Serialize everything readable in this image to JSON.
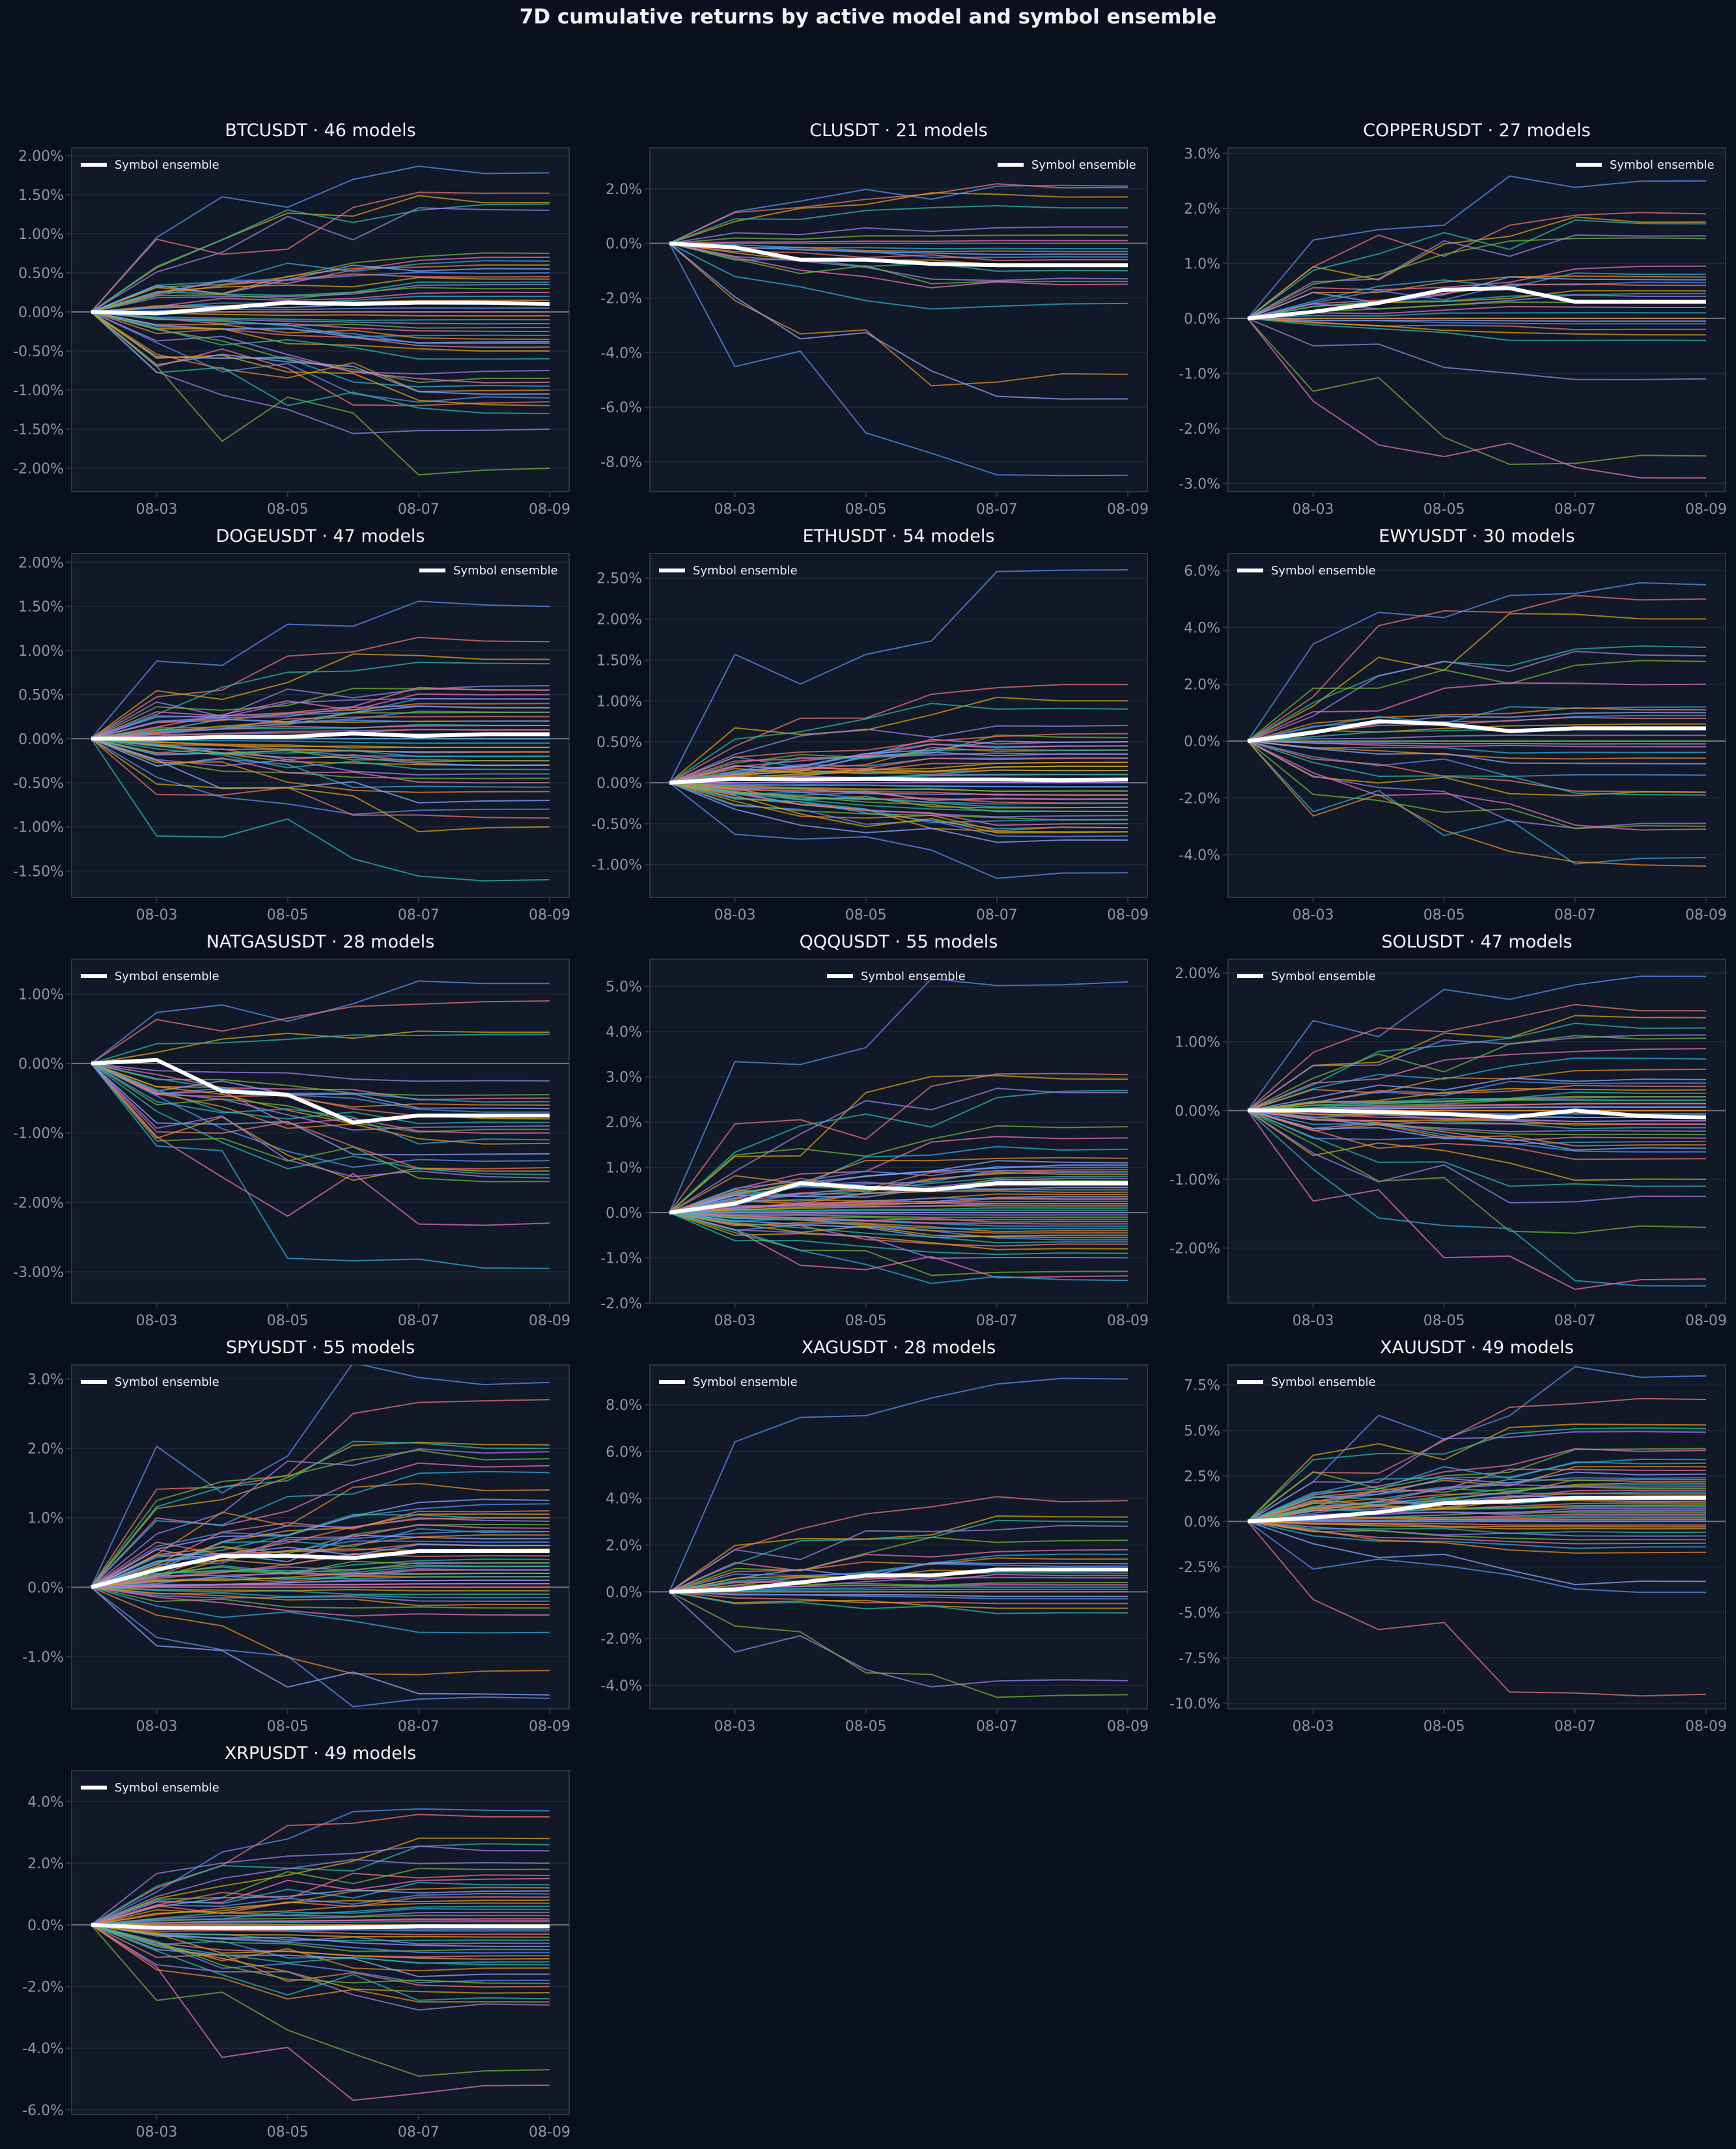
{
  "title": "7D cumulative returns by active model and symbol ensemble",
  "colors": {
    "background": "#0a0f1d",
    "axes_face": "#111827",
    "axes_edge": "#2b3444",
    "grid": "#1f2a3a",
    "zero_line": "#6b7280",
    "ensemble": "#ffffff",
    "model_palette": [
      "#5b8def",
      "#e57373",
      "#d4a017",
      "#2bb5a6",
      "#9b7fe6",
      "#6fb23b",
      "#e56fb0",
      "#2fa9d4",
      "#e08a2b",
      "#8aa4ff"
    ]
  },
  "chart_data": [
    {
      "type": "line",
      "title": "BTCUSDT · 46 models",
      "x": [
        "08-02",
        "08-03",
        "08-04",
        "08-05",
        "08-06",
        "08-07",
        "08-08",
        "08-09"
      ],
      "xticks": [
        "08-03",
        "08-05",
        "08-07",
        "08-09"
      ],
      "ylim": [
        -2.3,
        2.1
      ],
      "yticks": [
        "2.00%",
        "1.50%",
        "1.00%",
        "0.50%",
        "0.00%",
        "-0.50%",
        "-1.00%",
        "-1.50%",
        "-2.00%"
      ],
      "ytick_values": [
        2.0,
        1.5,
        1.0,
        0.5,
        0.0,
        -0.5,
        -1.0,
        -1.5,
        -2.0
      ],
      "legend": "Symbol ensemble",
      "legend_position": "upper-left",
      "grid": true,
      "ensemble": [
        0,
        -0.02,
        0.05,
        0.12,
        0.1,
        0.12,
        0.12,
        0.1
      ],
      "model_final_values": [
        1.78,
        1.52,
        1.4,
        1.38,
        1.3,
        0.75,
        0.7,
        0.65,
        0.6,
        0.55,
        0.5,
        0.45,
        0.42,
        0.38,
        0.35,
        0.3,
        0.25,
        0.2,
        0.15,
        0.1,
        0.05,
        0.0,
        -0.05,
        -0.1,
        -0.15,
        -0.2,
        -0.25,
        -0.3,
        -0.35,
        -0.38,
        -0.4,
        -0.45,
        -0.5,
        -0.6,
        -0.75,
        -0.85,
        -0.9,
        -0.95,
        -1.0,
        -1.05,
        -1.1,
        -1.15,
        -1.2,
        -1.3,
        -1.5,
        -2.0
      ]
    },
    {
      "type": "line",
      "title": "CLUSDT · 21 models",
      "x": [
        "08-02",
        "08-03",
        "08-04",
        "08-05",
        "08-06",
        "08-07",
        "08-08",
        "08-09"
      ],
      "xticks": [
        "08-03",
        "08-05",
        "08-07",
        "08-09"
      ],
      "ylim": [
        -9.1,
        3.5
      ],
      "yticks": [
        "2.0%",
        "0.0%",
        "-2.0%",
        "-4.0%",
        "-6.0%",
        "-8.0%"
      ],
      "ytick_values": [
        2.0,
        0.0,
        -2.0,
        -4.0,
        -6.0,
        -8.0
      ],
      "legend": "Symbol ensemble",
      "legend_position": "upper-right",
      "grid": true,
      "ensemble": [
        0,
        -0.15,
        -0.6,
        -0.6,
        -0.75,
        -0.8,
        -0.8,
        -0.8
      ],
      "model_final_values": [
        2.1,
        2.05,
        1.7,
        1.3,
        0.6,
        0.3,
        0.1,
        -0.2,
        -0.3,
        -0.4,
        -0.5,
        -0.6,
        -0.8,
        -1.0,
        -1.3,
        -1.4,
        -1.5,
        -2.2,
        -4.8,
        -5.7,
        -8.5
      ]
    },
    {
      "type": "line",
      "title": "COPPERUSDT · 27 models",
      "x": [
        "08-02",
        "08-03",
        "08-04",
        "08-05",
        "08-06",
        "08-07",
        "08-08",
        "08-09"
      ],
      "xticks": [
        "08-03",
        "08-05",
        "08-07",
        "08-09"
      ],
      "ylim": [
        -3.15,
        3.1
      ],
      "yticks": [
        "3.0%",
        "2.0%",
        "1.0%",
        "0.0%",
        "-1.0%",
        "-2.0%",
        "-3.0%"
      ],
      "ytick_values": [
        3.0,
        2.0,
        1.0,
        0.0,
        -1.0,
        -2.0,
        -3.0
      ],
      "legend": "Symbol ensemble",
      "legend_position": "upper-right",
      "grid": true,
      "ensemble": [
        0,
        0.12,
        0.28,
        0.52,
        0.55,
        0.3,
        0.3,
        0.3
      ],
      "model_final_values": [
        2.5,
        1.9,
        1.75,
        1.72,
        1.5,
        1.45,
        0.95,
        0.8,
        0.75,
        0.7,
        0.65,
        0.6,
        0.5,
        0.45,
        0.4,
        0.3,
        0.2,
        0.1,
        0.0,
        -0.05,
        -0.1,
        -0.2,
        -0.3,
        -0.4,
        -1.1,
        -2.5,
        -2.9
      ]
    },
    {
      "type": "line",
      "title": "DOGEUSDT · 47 models",
      "x": [
        "08-02",
        "08-03",
        "08-04",
        "08-05",
        "08-06",
        "08-07",
        "08-08",
        "08-09"
      ],
      "xticks": [
        "08-03",
        "08-05",
        "08-07",
        "08-09"
      ],
      "ylim": [
        -1.8,
        2.1
      ],
      "yticks": [
        "2.00%",
        "1.50%",
        "1.00%",
        "0.50%",
        "0.00%",
        "-0.50%",
        "-1.00%",
        "-1.50%"
      ],
      "ytick_values": [
        2.0,
        1.5,
        1.0,
        0.5,
        0.0,
        -0.5,
        -1.0,
        -1.5
      ],
      "legend": "Symbol ensemble",
      "legend_position": "upper-right",
      "grid": true,
      "ensemble": [
        0,
        0.0,
        0.02,
        0.02,
        0.06,
        0.03,
        0.05,
        0.05
      ],
      "model_final_values": [
        1.5,
        1.1,
        0.9,
        0.85,
        0.6,
        0.55,
        0.5,
        0.45,
        0.4,
        0.35,
        0.3,
        0.25,
        0.2,
        0.15,
        0.1,
        0.05,
        0.0,
        -0.05,
        -0.1,
        -0.15,
        -0.2,
        -0.25,
        -0.3,
        -0.35,
        -0.4,
        -0.45,
        -0.5,
        -0.55,
        -0.6,
        -0.7,
        -0.8,
        -0.9,
        -1.0,
        -1.6,
        0.45,
        0.3,
        0.15,
        0.0,
        -0.15,
        -0.3,
        0.2,
        0.1,
        -0.1,
        -0.2,
        0.35,
        -0.25,
        0.55
      ]
    },
    {
      "type": "line",
      "title": "ETHUSDT · 54 models",
      "x": [
        "08-02",
        "08-03",
        "08-04",
        "08-05",
        "08-06",
        "08-07",
        "08-08",
        "08-09"
      ],
      "xticks": [
        "08-03",
        "08-05",
        "08-07",
        "08-09"
      ],
      "ylim": [
        -1.4,
        2.8
      ],
      "yticks": [
        "2.50%",
        "2.00%",
        "1.50%",
        "1.00%",
        "0.50%",
        "0.00%",
        "-0.50%",
        "-1.00%"
      ],
      "ytick_values": [
        2.5,
        2.0,
        1.5,
        1.0,
        0.5,
        0.0,
        -0.5,
        -1.0
      ],
      "legend": "Symbol ensemble",
      "legend_position": "upper-left",
      "grid": true,
      "ensemble": [
        0,
        0.05,
        0.04,
        0.05,
        0.04,
        0.04,
        0.03,
        0.04
      ],
      "model_final_values": [
        2.6,
        1.2,
        1.0,
        0.9,
        0.7,
        0.55,
        0.5,
        0.45,
        0.4,
        0.35,
        0.3,
        0.25,
        0.2,
        0.15,
        0.1,
        0.05,
        0.0,
        -0.05,
        -0.1,
        -0.15,
        -0.2,
        -0.25,
        -0.3,
        -0.35,
        -0.4,
        -0.45,
        -0.5,
        -0.55,
        -0.6,
        -0.7,
        -1.1,
        0.3,
        0.2,
        0.1,
        0.0,
        -0.1,
        -0.2,
        -0.3,
        0.15,
        0.05,
        -0.05,
        -0.15,
        0.25,
        -0.25,
        0.35,
        -0.35,
        0.45,
        -0.45,
        -0.55,
        0.5,
        -0.65,
        0.6,
        -0.6,
        0.4
      ]
    },
    {
      "type": "line",
      "title": "EWYUSDT · 30 models",
      "x": [
        "08-02",
        "08-03",
        "08-04",
        "08-05",
        "08-06",
        "08-07",
        "08-08",
        "08-09"
      ],
      "xticks": [
        "08-03",
        "08-05",
        "08-07",
        "08-09"
      ],
      "ylim": [
        -5.5,
        6.6
      ],
      "yticks": [
        "6.0%",
        "4.0%",
        "2.0%",
        "0.0%",
        "-2.0%",
        "-4.0%"
      ],
      "ytick_values": [
        6.0,
        4.0,
        2.0,
        0.0,
        -2.0,
        -4.0
      ],
      "legend": "Symbol ensemble",
      "legend_position": "upper-left",
      "grid": true,
      "ensemble": [
        0,
        0.3,
        0.7,
        0.6,
        0.35,
        0.45,
        0.45,
        0.45
      ],
      "model_final_values": [
        5.5,
        5.0,
        4.3,
        3.3,
        3.0,
        2.8,
        2.0,
        1.2,
        1.1,
        1.0,
        0.9,
        0.8,
        0.6,
        0.4,
        0.2,
        0.0,
        -0.2,
        -0.4,
        -0.6,
        -0.8,
        -1.2,
        -1.8,
        -1.8,
        -1.9,
        -2.9,
        -3.0,
        -3.1,
        -4.1,
        -4.4,
        -0.1
      ]
    },
    {
      "type": "line",
      "title": "NATGASUSDT · 28 models",
      "x": [
        "08-02",
        "08-03",
        "08-04",
        "08-05",
        "08-06",
        "08-07",
        "08-08",
        "08-09"
      ],
      "xticks": [
        "08-03",
        "08-05",
        "08-07",
        "08-09"
      ],
      "ylim": [
        -3.45,
        1.5
      ],
      "yticks": [
        "1.00%",
        "0.00%",
        "-1.00%",
        "-2.00%",
        "-3.00%"
      ],
      "ytick_values": [
        1.0,
        0.0,
        -1.0,
        -2.0,
        -3.0
      ],
      "legend": "Symbol ensemble",
      "legend_position": "upper-left",
      "grid": true,
      "ensemble": [
        0,
        0.05,
        -0.4,
        -0.45,
        -0.85,
        -0.75,
        -0.75,
        -0.75
      ],
      "model_final_values": [
        1.15,
        0.9,
        0.45,
        0.42,
        -0.25,
        -0.45,
        -0.5,
        -0.55,
        -0.6,
        -0.65,
        -0.7,
        -0.75,
        -0.8,
        -0.85,
        -0.9,
        -0.95,
        -1.0,
        -1.1,
        -1.15,
        -1.3,
        -1.4,
        -1.5,
        -1.55,
        -1.6,
        -1.65,
        -1.7,
        -2.3,
        -2.95
      ]
    },
    {
      "type": "line",
      "title": "QQQUSDT · 55 models",
      "x": [
        "08-02",
        "08-03",
        "08-04",
        "08-05",
        "08-06",
        "08-07",
        "08-08",
        "08-09"
      ],
      "xticks": [
        "08-03",
        "08-05",
        "08-07",
        "08-09"
      ],
      "ylim": [
        -2.0,
        5.6
      ],
      "yticks": [
        "5.0%",
        "4.0%",
        "3.0%",
        "2.0%",
        "1.0%",
        "0.0%",
        "-1.0%",
        "-2.0%"
      ],
      "ytick_values": [
        5.0,
        4.0,
        3.0,
        2.0,
        1.0,
        0.0,
        -1.0,
        -2.0
      ],
      "legend": "Symbol ensemble",
      "legend_position": "upper-center",
      "grid": true,
      "ensemble": [
        0,
        0.2,
        0.65,
        0.55,
        0.5,
        0.65,
        0.65,
        0.65
      ],
      "model_final_values": [
        5.1,
        3.05,
        2.95,
        2.7,
        2.65,
        1.9,
        1.65,
        1.4,
        1.2,
        1.1,
        1.0,
        0.9,
        0.85,
        0.8,
        0.75,
        0.7,
        0.6,
        0.5,
        0.4,
        0.35,
        0.3,
        0.25,
        0.2,
        0.1,
        0.0,
        -0.1,
        -0.2,
        -0.3,
        -0.4,
        -0.5,
        -0.6,
        -0.7,
        -0.8,
        -0.9,
        -1.0,
        -1.3,
        -1.4,
        -1.5,
        0.45,
        0.55,
        0.65,
        0.95,
        0.15,
        0.05,
        -0.05,
        -0.15,
        -0.25,
        -0.35,
        -0.45,
        1.05,
        0.9,
        0.3,
        -0.55,
        -0.65,
        0.2
      ]
    },
    {
      "type": "line",
      "title": "SOLUSDT · 47 models",
      "x": [
        "08-02",
        "08-03",
        "08-04",
        "08-05",
        "08-06",
        "08-07",
        "08-08",
        "08-09"
      ],
      "xticks": [
        "08-03",
        "08-05",
        "08-07",
        "08-09"
      ],
      "ylim": [
        -2.8,
        2.2
      ],
      "yticks": [
        "2.00%",
        "1.00%",
        "0.00%",
        "-1.00%",
        "-2.00%"
      ],
      "ytick_values": [
        2.0,
        1.0,
        0.0,
        -1.0,
        -2.0
      ],
      "legend": "Symbol ensemble",
      "legend_position": "upper-left",
      "grid": true,
      "ensemble": [
        0,
        0.0,
        -0.02,
        -0.05,
        -0.1,
        0.0,
        -0.08,
        -0.1
      ],
      "model_final_values": [
        1.95,
        1.45,
        1.35,
        1.2,
        1.1,
        1.05,
        0.9,
        0.75,
        0.6,
        0.45,
        0.4,
        0.35,
        0.3,
        0.25,
        0.2,
        0.15,
        0.1,
        0.05,
        0.0,
        -0.05,
        -0.1,
        -0.15,
        -0.2,
        -0.25,
        -0.3,
        -0.35,
        -0.4,
        -0.45,
        -0.5,
        -0.55,
        -0.6,
        -0.7,
        -1.0,
        -1.1,
        -1.25,
        -1.7,
        -2.45,
        -2.55,
        0.0,
        0.05,
        -0.05,
        0.1,
        -0.1,
        0.15,
        -0.15,
        0.2,
        -0.2
      ]
    },
    {
      "type": "line",
      "title": "SPYUSDT · 55 models",
      "x": [
        "08-02",
        "08-03",
        "08-04",
        "08-05",
        "08-06",
        "08-07",
        "08-08",
        "08-09"
      ],
      "xticks": [
        "08-03",
        "08-05",
        "08-07",
        "08-09"
      ],
      "ylim": [
        -1.75,
        3.2
      ],
      "yticks": [
        "3.0%",
        "2.0%",
        "1.0%",
        "0.0%",
        "-1.0%"
      ],
      "ytick_values": [
        3.0,
        2.0,
        1.0,
        0.0,
        -1.0
      ],
      "legend": "Symbol ensemble",
      "legend_position": "upper-left",
      "grid": true,
      "ensemble": [
        0,
        0.25,
        0.45,
        0.45,
        0.42,
        0.52,
        0.52,
        0.52
      ],
      "model_final_values": [
        2.95,
        2.7,
        2.05,
        2.0,
        1.95,
        1.85,
        1.75,
        1.65,
        1.4,
        1.25,
        1.2,
        1.1,
        1.05,
        1.0,
        0.95,
        0.9,
        0.85,
        0.8,
        0.75,
        0.7,
        0.65,
        0.6,
        0.5,
        0.4,
        0.35,
        0.3,
        0.25,
        0.2,
        0.15,
        0.1,
        0.05,
        0.0,
        -0.05,
        -0.1,
        -0.2,
        -0.3,
        -0.4,
        -0.65,
        -1.2,
        -1.55,
        -1.6,
        0.45,
        0.55,
        0.15,
        0.25,
        0.35,
        0.05,
        -0.15,
        -0.25,
        0.6,
        0.8,
        1.0,
        0.2,
        0.3,
        0.1
      ]
    },
    {
      "type": "line",
      "title": "XAGUSDT · 28 models",
      "x": [
        "08-02",
        "08-03",
        "08-04",
        "08-05",
        "08-06",
        "08-07",
        "08-08",
        "08-09"
      ],
      "xticks": [
        "08-03",
        "08-05",
        "08-07",
        "08-09"
      ],
      "ylim": [
        -5.0,
        9.7
      ],
      "yticks": [
        "8.0%",
        "6.0%",
        "4.0%",
        "2.0%",
        "0.0%",
        "-2.0%",
        "-4.0%"
      ],
      "ytick_values": [
        8.0,
        6.0,
        4.0,
        2.0,
        0.0,
        -2.0,
        -4.0
      ],
      "legend": "Symbol ensemble",
      "legend_position": "upper-left",
      "grid": true,
      "ensemble": [
        0,
        0.1,
        0.4,
        0.7,
        0.7,
        0.95,
        0.95,
        0.95
      ],
      "model_final_values": [
        9.1,
        3.9,
        3.2,
        3.0,
        2.8,
        2.2,
        1.8,
        1.6,
        1.4,
        1.2,
        1.1,
        1.0,
        0.9,
        0.8,
        0.6,
        0.4,
        0.3,
        0.2,
        0.0,
        -0.2,
        -0.3,
        -0.5,
        -0.7,
        -0.9,
        -3.8,
        -4.4,
        0.7,
        0.1
      ]
    },
    {
      "type": "line",
      "title": "XAUUSDT · 49 models",
      "x": [
        "08-02",
        "08-03",
        "08-04",
        "08-05",
        "08-06",
        "08-07",
        "08-08",
        "08-09"
      ],
      "xticks": [
        "08-03",
        "08-05",
        "08-07",
        "08-09"
      ],
      "ylim": [
        -10.3,
        8.6
      ],
      "yticks": [
        "7.5%",
        "5.0%",
        "2.5%",
        "0.0%",
        "-2.5%",
        "-5.0%",
        "-7.5%",
        "-10.0%"
      ],
      "ytick_values": [
        7.5,
        5.0,
        2.5,
        0.0,
        -2.5,
        -5.0,
        -7.5,
        -10.0
      ],
      "legend": "Symbol ensemble",
      "legend_position": "upper-left",
      "grid": true,
      "ensemble": [
        0,
        0.2,
        0.5,
        1.0,
        1.1,
        1.3,
        1.3,
        1.3
      ],
      "model_final_values": [
        8.0,
        6.7,
        5.3,
        5.1,
        4.9,
        4.0,
        3.9,
        3.4,
        3.0,
        2.6,
        2.4,
        2.2,
        2.1,
        2.0,
        1.9,
        1.8,
        1.7,
        1.6,
        1.5,
        1.4,
        1.2,
        1.0,
        0.9,
        0.8,
        0.6,
        0.5,
        0.4,
        0.3,
        0.2,
        0.1,
        0.0,
        -0.2,
        -0.4,
        -0.6,
        -0.8,
        -1.0,
        -1.2,
        -1.4,
        -1.7,
        -3.3,
        -3.9,
        -9.5,
        1.1,
        1.3,
        0.7,
        2.3,
        2.8,
        3.2,
        -0.3
      ]
    },
    {
      "type": "line",
      "title": "XRPUSDT · 49 models",
      "x": [
        "08-02",
        "08-03",
        "08-04",
        "08-05",
        "08-06",
        "08-07",
        "08-08",
        "08-09"
      ],
      "xticks": [
        "08-03",
        "08-05",
        "08-07",
        "08-09"
      ],
      "ylim": [
        -6.15,
        5.0
      ],
      "yticks": [
        "4.0%",
        "2.0%",
        "0.0%",
        "-2.0%",
        "-4.0%",
        "-6.0%"
      ],
      "ytick_values": [
        4.0,
        2.0,
        0.0,
        -2.0,
        -4.0,
        -6.0
      ],
      "legend": "Symbol ensemble",
      "legend_position": "upper-left",
      "grid": true,
      "ensemble": [
        0,
        -0.1,
        -0.1,
        -0.1,
        -0.08,
        -0.05,
        -0.05,
        -0.05
      ],
      "model_final_values": [
        3.7,
        3.5,
        2.8,
        2.6,
        2.4,
        1.8,
        1.5,
        1.3,
        1.2,
        1.1,
        1.0,
        0.9,
        0.8,
        0.6,
        0.4,
        0.3,
        0.2,
        0.1,
        0.0,
        -0.1,
        -0.2,
        -0.3,
        -0.4,
        -0.5,
        -0.6,
        -0.8,
        -1.0,
        -1.2,
        -1.4,
        -1.6,
        -1.8,
        -2.0,
        -2.2,
        -2.4,
        -2.6,
        -4.7,
        -5.2,
        0.5,
        0.7,
        -0.7,
        -0.9,
        1.6,
        -1.1,
        -1.3,
        2.0,
        -1.9,
        0.15,
        -0.15,
        -2.5
      ]
    }
  ]
}
